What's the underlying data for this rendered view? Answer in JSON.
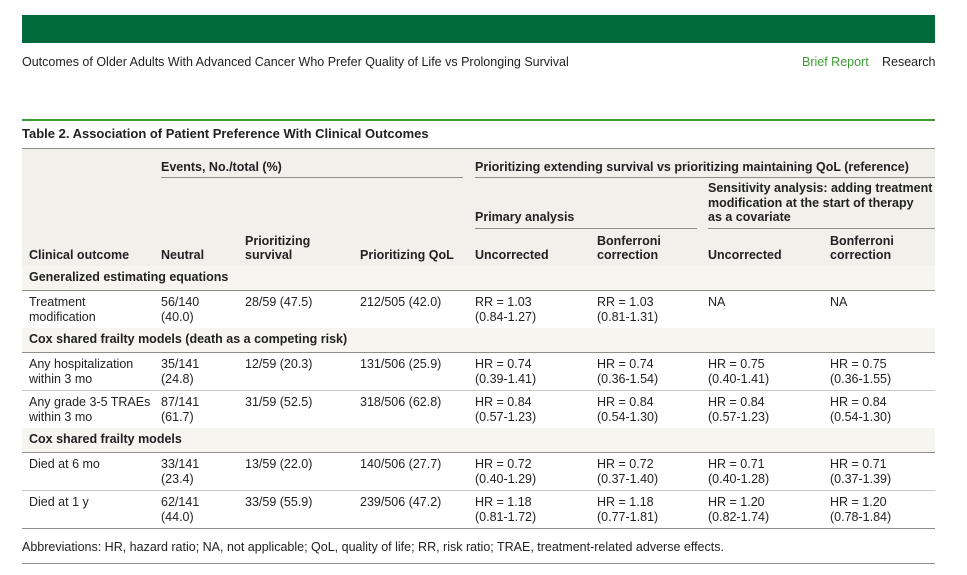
{
  "header": {
    "title": "Outcomes of Older Adults With Advanced Cancer Who Prefer Quality of Life vs Prolonging Survival",
    "tags": [
      "Brief Report",
      "Research"
    ]
  },
  "table": {
    "title": "Table 2. Association of Patient Preference With Clinical Outcomes",
    "group_headers": [
      "Events, No./total (%)",
      "Prioritizing extending survival vs prioritizing maintaining QoL (reference)"
    ],
    "subgroup_headers": [
      [
        "Primary analysis"
      ],
      [
        "Sensitivity analysis: adding treatment",
        "modification at the start of therapy",
        "as a covariate"
      ]
    ],
    "columns": [
      [
        "Clinical outcome"
      ],
      [
        "Neutral"
      ],
      [
        "Prioritizing",
        "survival"
      ],
      [
        "Prioritizing QoL"
      ],
      [
        "Uncorrected"
      ],
      [
        "Bonferroni",
        "correction"
      ],
      [
        "Uncorrected"
      ],
      [
        "Bonferroni",
        "correction"
      ]
    ],
    "sections": [
      {
        "label": "Generalized estimating equations",
        "rows": [
          [
            [
              "Treatment",
              "modification"
            ],
            [
              "56/140",
              "(40.0)"
            ],
            [
              "28/59 (47.5)"
            ],
            [
              "212/505 (42.0)"
            ],
            [
              "RR = 1.03",
              "(0.84-1.27)"
            ],
            [
              "RR = 1.03",
              "(0.81-1.31)"
            ],
            [
              "NA"
            ],
            [
              "NA"
            ]
          ]
        ]
      },
      {
        "label": "Cox shared frailty models (death as a competing risk)",
        "rows": [
          [
            [
              "Any hospitalization",
              "within 3 mo"
            ],
            [
              "35/141",
              "(24.8)"
            ],
            [
              "12/59 (20.3)"
            ],
            [
              "131/506 (25.9)"
            ],
            [
              "HR = 0.74",
              "(0.39-1.41)"
            ],
            [
              "HR = 0.74",
              "(0.36-1.54)"
            ],
            [
              "HR = 0.75",
              "(0.40-1.41)"
            ],
            [
              "HR = 0.75",
              "(0.36-1.55)"
            ]
          ],
          [
            [
              "Any grade 3-5 TRAEs",
              "within 3 mo"
            ],
            [
              "87/141",
              "(61.7)"
            ],
            [
              "31/59 (52.5)"
            ],
            [
              "318/506 (62.8)"
            ],
            [
              "HR = 0.84",
              "(0.57-1.23)"
            ],
            [
              "HR = 0.84",
              "(0.54-1.30)"
            ],
            [
              "HR = 0.84",
              "(0.57-1.23)"
            ],
            [
              "HR = 0.84",
              "(0.54-1.30)"
            ]
          ]
        ]
      },
      {
        "label": "Cox shared frailty models",
        "rows": [
          [
            [
              "Died at 6 mo"
            ],
            [
              "33/141",
              "(23.4)"
            ],
            [
              "13/59 (22.0)"
            ],
            [
              "140/506 (27.7)"
            ],
            [
              "HR = 0.72",
              "(0.40-1.29)"
            ],
            [
              "HR = 0.72",
              "(0.37-1.40)"
            ],
            [
              "HR = 0.71",
              "(0.40-1.28)"
            ],
            [
              "HR = 0.71",
              "(0.37-1.39)"
            ]
          ],
          [
            [
              "Died at 1 y"
            ],
            [
              "62/141",
              "(44.0)"
            ],
            [
              "33/59 (55.9)"
            ],
            [
              "239/506 (47.2)"
            ],
            [
              "HR = 1.18",
              "(0.81-1.72)"
            ],
            [
              "HR = 1.18",
              "(0.77-1.81)"
            ],
            [
              "HR = 1.20",
              "(0.82-1.74)"
            ],
            [
              "HR = 1.20",
              "(0.78-1.84)"
            ]
          ]
        ]
      }
    ],
    "footnote": "Abbreviations: HR, hazard ratio; NA, not applicable; QoL, quality of life; RR, risk ratio; TRAE, treatment-related adverse effects."
  }
}
